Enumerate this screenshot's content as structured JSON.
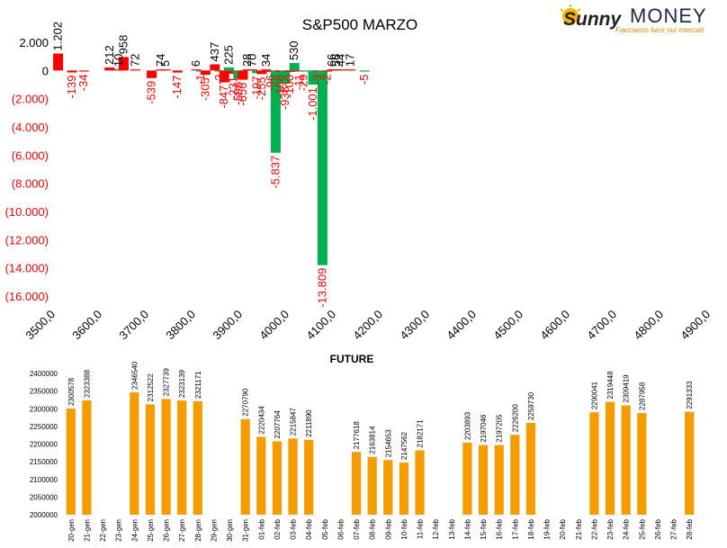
{
  "logo": {
    "brand_script": "Sunny",
    "brand_word": "MONEY",
    "tagline": "Facciamo luce sui mercati"
  },
  "colors": {
    "positive": "#00b050",
    "negative": "#ff0000",
    "future": "#f59c00",
    "negative_text": "#ff0000",
    "axis_text": "#000000"
  },
  "chart_data": [
    {
      "type": "bar",
      "title": "S&P500 MARZO",
      "xlabel": "",
      "ylabel": "",
      "ylim": [
        -16000,
        2000
      ],
      "y_ticks": [
        2000,
        0,
        -2000,
        -4000,
        -6000,
        -8000,
        -10000,
        -12000,
        -14000,
        -16000
      ],
      "y_tick_labels": [
        "2.000",
        "0",
        "(2.000)",
        "(4.000)",
        "(6.000)",
        "(8.000)",
        "(10.000)",
        "(12.000)",
        "(14.000)",
        "(16.000)"
      ],
      "x_range": [
        3500,
        4900
      ],
      "x_ticks": [
        3500,
        3600,
        3700,
        3800,
        3900,
        4000,
        4100,
        4200,
        4300,
        4400,
        4500,
        4600,
        4700,
        4800,
        4900
      ],
      "x_tick_labels": [
        "3500,0",
        "3600,0",
        "3700,0",
        "3800,0",
        "3900,0",
        "4000,0",
        "4100,0",
        "4200,0",
        "4300,0",
        "4400,0",
        "4500,0",
        "4600,0",
        "4700,0",
        "4800,0",
        "4900,0"
      ],
      "grid": false,
      "legend": "none",
      "bars": [
        {
          "x": 3505,
          "value": 1202,
          "label": "1.202",
          "color": "red"
        },
        {
          "x": 3535,
          "value": -139,
          "label": "-139",
          "color": "red"
        },
        {
          "x": 3560,
          "value": -34,
          "label": "-34",
          "color": "red"
        },
        {
          "x": 3615,
          "value": 212,
          "label": "212",
          "color": "red"
        },
        {
          "x": 3635,
          "value": 10,
          "label": "10",
          "color": "red"
        },
        {
          "x": 3645,
          "value": 958,
          "label": "958",
          "color": "red"
        },
        {
          "x": 3670,
          "value": 72,
          "label": "72",
          "color": "red"
        },
        {
          "x": 3705,
          "value": -539,
          "label": "-539",
          "color": "red"
        },
        {
          "x": 3725,
          "value": 74,
          "label": "74",
          "color": "red"
        },
        {
          "x": 3735,
          "value": 5,
          "label": "5",
          "color": "red"
        },
        {
          "x": 3760,
          "value": -147,
          "label": "-147",
          "color": "red"
        },
        {
          "x": 3800,
          "value": 6,
          "label": "6",
          "color": "red"
        },
        {
          "x": 3810,
          "value": -1,
          "label": "-1",
          "color": "green"
        },
        {
          "x": 3820,
          "value": -305,
          "label": "-305",
          "color": "red"
        },
        {
          "x": 3840,
          "value": 437,
          "label": "437",
          "color": "red"
        },
        {
          "x": 3850,
          "value": -2,
          "label": "-2",
          "color": "green"
        },
        {
          "x": 3860,
          "value": -847,
          "label": "-847",
          "color": "red"
        },
        {
          "x": 3870,
          "value": 225,
          "label": "225",
          "color": "green"
        },
        {
          "x": 3880,
          "value": -231,
          "label": "-231",
          "color": "red"
        },
        {
          "x": 3890,
          "value": -596,
          "label": "-596",
          "color": "green"
        },
        {
          "x": 3900,
          "value": -656,
          "label": "-656",
          "color": "red"
        },
        {
          "x": 3910,
          "value": 28,
          "label": "28",
          "color": "red"
        },
        {
          "x": 3920,
          "value": 70,
          "label": "70",
          "color": "red"
        },
        {
          "x": 3930,
          "value": -197,
          "label": "-197",
          "color": "green"
        },
        {
          "x": 3940,
          "value": -255,
          "label": "-255",
          "color": "red"
        },
        {
          "x": 3950,
          "value": 34,
          "label": "34",
          "color": "red"
        },
        {
          "x": 3960,
          "value": -96,
          "label": "-96",
          "color": "red"
        },
        {
          "x": 3970,
          "value": -5837,
          "label": "-5.837",
          "color": "green"
        },
        {
          "x": 3980,
          "value": -108,
          "label": "-108",
          "color": "red"
        },
        {
          "x": 3990,
          "value": -938,
          "label": "-938",
          "color": "green"
        },
        {
          "x": 4000,
          "value": -100,
          "label": "-100",
          "color": "red"
        },
        {
          "x": 4010,
          "value": 530,
          "label": "530",
          "color": "green"
        },
        {
          "x": 4020,
          "value": -11,
          "label": "-11",
          "color": "red"
        },
        {
          "x": 4030,
          "value": -29,
          "label": "-29",
          "color": "green"
        },
        {
          "x": 4050,
          "value": -1001,
          "label": "-1.001",
          "color": "green"
        },
        {
          "x": 4060,
          "value": -3,
          "label": "-3",
          "color": "red"
        },
        {
          "x": 4070,
          "value": -13809,
          "label": "-13.809",
          "color": "green"
        },
        {
          "x": 4080,
          "value": -2,
          "label": "-2",
          "color": "red"
        },
        {
          "x": 4090,
          "value": 66,
          "label": "66",
          "color": "red"
        },
        {
          "x": 4100,
          "value": 56,
          "label": "56",
          "color": "red"
        },
        {
          "x": 4110,
          "value": 44,
          "label": "44",
          "color": "red"
        },
        {
          "x": 4130,
          "value": 17,
          "label": "17",
          "color": "red"
        },
        {
          "x": 4160,
          "value": -5,
          "label": "-5",
          "color": "green"
        }
      ]
    },
    {
      "type": "bar",
      "title": "FUTURE",
      "xlabel": "",
      "ylabel": "",
      "ylim": [
        2000000,
        2400000
      ],
      "y_ticks": [
        2000000,
        2050000,
        2100000,
        2150000,
        2200000,
        2250000,
        2300000,
        2350000,
        2400000
      ],
      "y_tick_labels": [
        "2000000",
        "2050000",
        "2100000",
        "2150000",
        "2200000",
        "2250000",
        "2300000",
        "2350000",
        "2400000"
      ],
      "grid": false,
      "legend": "none",
      "categories": [
        "20-gen",
        "21-gen",
        "22-gen",
        "23-gen",
        "24-gen",
        "25-gen",
        "26-gen",
        "27-gen",
        "28-gen",
        "29-gen",
        "30-gen",
        "31-gen",
        "01-feb",
        "02-feb",
        "03-feb",
        "04-feb",
        "05-feb",
        "06-feb",
        "07-feb",
        "08-feb",
        "09-feb",
        "10-feb",
        "11-feb",
        "12-feb",
        "13-feb",
        "14-feb",
        "15-feb",
        "16-feb",
        "17-feb",
        "18-feb",
        "19-feb",
        "20-feb",
        "21-feb",
        "22-feb",
        "23-feb",
        "24-feb",
        "25-feb",
        "26-feb",
        "27-feb",
        "28-feb"
      ],
      "values": [
        2300578,
        2323388,
        null,
        null,
        2346540,
        2312522,
        2327739,
        2323139,
        2321171,
        null,
        null,
        2270790,
        2220434,
        2207764,
        2215847,
        2211890,
        null,
        null,
        2177618,
        2163814,
        2154653,
        2147562,
        2182171,
        null,
        null,
        2203893,
        2197046,
        2197205,
        2226200,
        2259730,
        null,
        null,
        null,
        2290041,
        2319448,
        2309419,
        2287958,
        null,
        null,
        2291333
      ],
      "value_labels": [
        "2300578",
        "2323388",
        "",
        "",
        "2346540",
        "2312522",
        "2327739",
        "2323139",
        "2321171",
        "",
        "",
        "2270790",
        "2220434",
        "2207764",
        "2215847",
        "2211890",
        "",
        "",
        "2177618",
        "2163814",
        "2154653",
        "2147562",
        "2182171",
        "",
        "",
        "2203893",
        "2197046",
        "2197205",
        "2226200",
        "2259730",
        "",
        "",
        "",
        "2290041",
        "2319448",
        "2309419",
        "2287958",
        "",
        "",
        "2291333"
      ]
    }
  ]
}
